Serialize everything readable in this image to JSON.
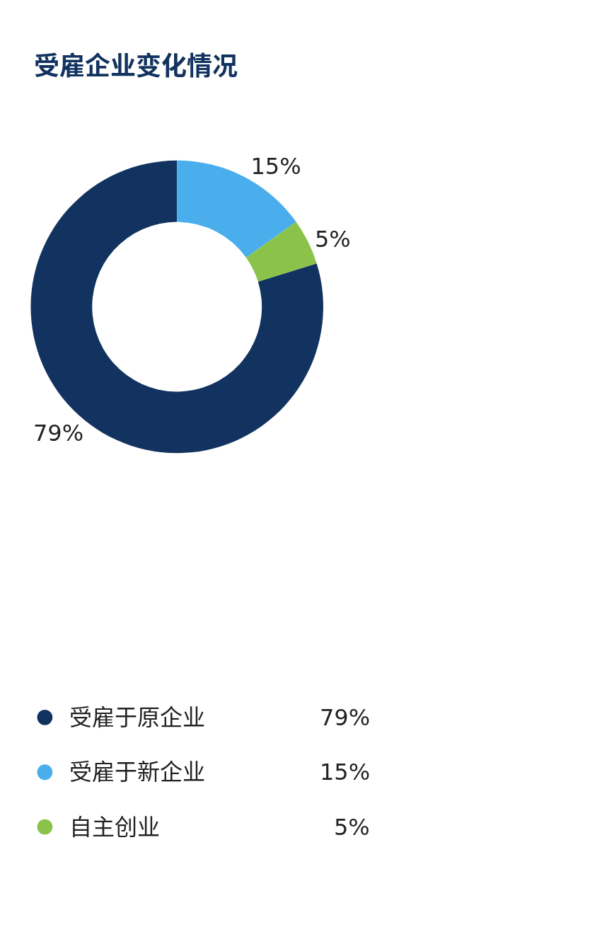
{
  "chart_data": {
    "type": "donut",
    "title": "受雇企业变化情况",
    "categories": [
      "受雇于原企业",
      "受雇于新企业",
      "自主创业"
    ],
    "values": [
      79,
      15,
      5
    ],
    "colors": [
      "#12335f",
      "#49aeeb",
      "#8bc34a"
    ],
    "value_labels": [
      "79%",
      "15%",
      "5%"
    ],
    "legend": "bottom"
  }
}
